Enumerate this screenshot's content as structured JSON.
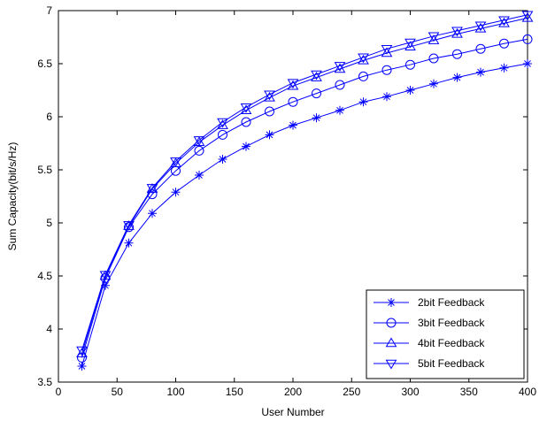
{
  "chart_data": {
    "type": "line",
    "title": "",
    "xlabel": "User Number",
    "ylabel": "Sum Capacity(bit/s/Hz)",
    "xlim": [
      0,
      400
    ],
    "ylim": [
      3.5,
      7
    ],
    "xticks": [
      "0",
      "50",
      "100",
      "150",
      "200",
      "250",
      "300",
      "350",
      "400"
    ],
    "yticks": [
      "3.5",
      "4",
      "4.5",
      "5",
      "5.5",
      "6",
      "6.5",
      "7"
    ],
    "grid": false,
    "legend_position": "bottom-right",
    "line_color": "#0000ff",
    "x": [
      20,
      40,
      60,
      80,
      100,
      120,
      140,
      160,
      180,
      200,
      220,
      240,
      260,
      280,
      300,
      320,
      340,
      360,
      380,
      400
    ],
    "series": [
      {
        "name": "2bit Feedback",
        "marker": "star",
        "values": [
          3.65,
          4.41,
          4.81,
          5.09,
          5.29,
          5.45,
          5.6,
          5.72,
          5.83,
          5.92,
          5.99,
          6.06,
          6.14,
          6.19,
          6.25,
          6.31,
          6.37,
          6.42,
          6.46,
          6.5
        ]
      },
      {
        "name": "3bit Feedback",
        "marker": "circle",
        "values": [
          3.73,
          4.48,
          4.96,
          5.27,
          5.49,
          5.68,
          5.83,
          5.95,
          6.05,
          6.14,
          6.22,
          6.3,
          6.38,
          6.44,
          6.49,
          6.55,
          6.59,
          6.64,
          6.69,
          6.73
        ]
      },
      {
        "name": "4bit Feedback",
        "marker": "triangle-up",
        "values": [
          3.77,
          4.5,
          4.97,
          5.32,
          5.56,
          5.76,
          5.92,
          6.06,
          6.18,
          6.29,
          6.37,
          6.45,
          6.53,
          6.6,
          6.66,
          6.72,
          6.78,
          6.83,
          6.88,
          6.93
        ]
      },
      {
        "name": "5bit Feedback",
        "marker": "triangle-down",
        "values": [
          3.8,
          4.51,
          4.98,
          5.33,
          5.58,
          5.78,
          5.95,
          6.09,
          6.21,
          6.32,
          6.4,
          6.48,
          6.56,
          6.64,
          6.7,
          6.76,
          6.81,
          6.86,
          6.91,
          6.96
        ]
      }
    ]
  }
}
